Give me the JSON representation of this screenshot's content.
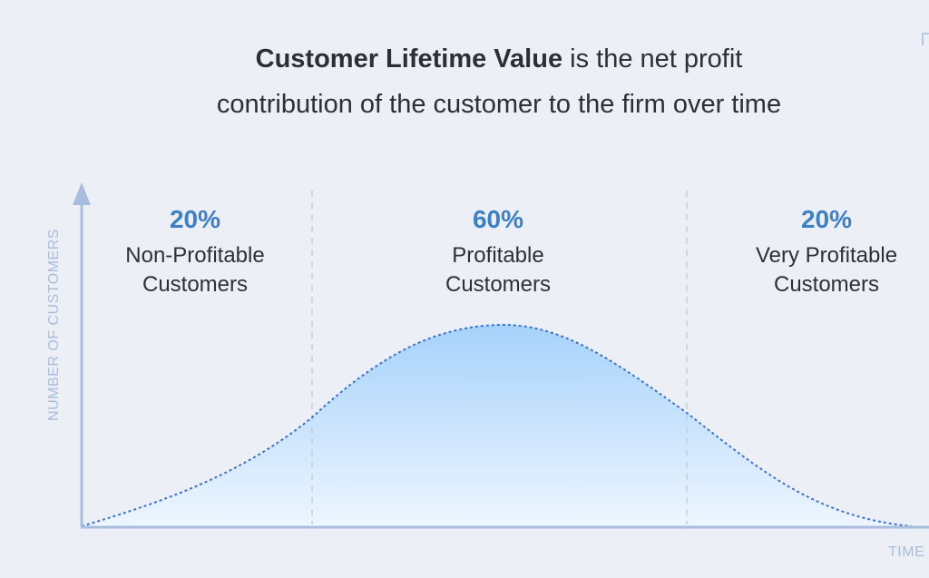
{
  "title": {
    "bold": "Customer Lifetime Value",
    "rest_line1": " is the net profit",
    "line2": "contribution of the customer to the firm over time"
  },
  "segments": [
    {
      "percent": "20%",
      "label_line1": "Non-Profitable",
      "label_line2": "Customers"
    },
    {
      "percent": "60%",
      "label_line1": "Profitable",
      "label_line2": "Customers"
    },
    {
      "percent": "20%",
      "label_line1": "Very Profitable",
      "label_line2": "Customers"
    }
  ],
  "axes": {
    "ylabel": "NUMBER OF CUSTOMERS",
    "xlabel": "TIME"
  },
  "colors": {
    "background": "#eceff6",
    "percent": "#3e80c4",
    "axis": "#a9bddc",
    "curve_stroke": "#3f73c8",
    "fill_top": "#a6d2fb",
    "fill_bottom": "#eef6ff"
  }
}
